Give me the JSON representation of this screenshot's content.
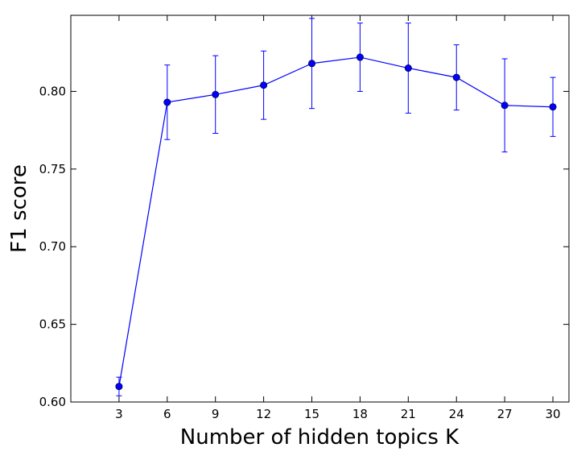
{
  "chart_data": {
    "type": "line",
    "title": "",
    "xlabel": "Number of hidden topics K",
    "ylabel": "F1 score",
    "xlim": [
      0,
      31
    ],
    "ylim": [
      0.6,
      0.849
    ],
    "grid": false,
    "x_ticks": [
      3,
      6,
      9,
      12,
      15,
      18,
      21,
      24,
      27,
      30
    ],
    "y_ticks": [
      "0.60",
      "0.65",
      "0.70",
      "0.75",
      "0.80"
    ],
    "y_tick_values": [
      0.6,
      0.65,
      0.7,
      0.75,
      0.8
    ],
    "series": [
      {
        "color": "#0000ff",
        "marker": "circle",
        "x": [
          3,
          6,
          9,
          12,
          15,
          18,
          21,
          24,
          27,
          30
        ],
        "y": [
          0.61,
          0.793,
          0.798,
          0.804,
          0.818,
          0.822,
          0.815,
          0.809,
          0.791,
          0.79
        ],
        "error": [
          0.006,
          0.024,
          0.025,
          0.022,
          0.029,
          0.022,
          0.029,
          0.021,
          0.03,
          0.019
        ]
      }
    ]
  }
}
